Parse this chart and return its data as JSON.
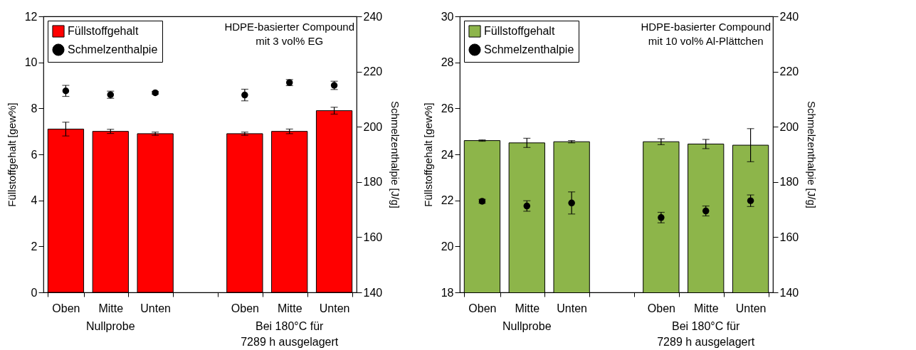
{
  "chart_data": [
    {
      "type": "bar",
      "categories": [
        "Oben",
        "Mitte",
        "Unten",
        null,
        "Oben",
        "Mitte",
        "Unten"
      ],
      "ylabel": "Füllstoffgehalt [gew%]",
      "y2label": "Schmelzenthalpie [J/g]",
      "ylim": [
        0,
        12
      ],
      "yticks": [
        0,
        2,
        4,
        6,
        8,
        10,
        12
      ],
      "y2lim": [
        140,
        240
      ],
      "y2ticks": [
        140,
        160,
        180,
        200,
        220,
        240
      ],
      "legend": "top left",
      "marker": "circle",
      "annotations": [
        "HDPE-basierter Compound\nmit 3 vol% EG",
        "Nullprobe",
        "Bei 180°C für\n7289 h ausgelagert"
      ],
      "series": [
        {
          "name": "Füllstoffgehalt",
          "color": "#ff0000",
          "values": [
            7.1,
            7.0,
            6.9,
            null,
            6.9,
            7.0,
            7.9
          ],
          "errors": [
            0.3,
            0.09,
            0.07,
            null,
            0.07,
            0.1,
            0.15
          ]
        },
        {
          "type": "scatter",
          "axis": "y2",
          "name": "Schmelzenthalpie",
          "color": "#000000",
          "values": [
            213,
            211.6,
            212.3,
            null,
            211.5,
            216,
            215
          ],
          "errors": [
            2,
            1.3,
            0.5,
            null,
            2.1,
            1.1,
            1.5
          ]
        }
      ]
    },
    {
      "type": "bar",
      "categories": [
        "Oben",
        "Mitte",
        "Unten",
        null,
        "Oben",
        "Mitte",
        "Unten"
      ],
      "ylabel": "Füllstoffgehalt [gew%]",
      "y2label": "Schmelzenthalpie [J/g]",
      "ylim": [
        18,
        30
      ],
      "yticks": [
        18,
        20,
        22,
        24,
        26,
        28,
        30
      ],
      "y2lim": [
        140,
        240
      ],
      "y2ticks": [
        140,
        160,
        180,
        200,
        220,
        240
      ],
      "legend": "top left",
      "marker": "circle",
      "annotations": [
        "HDPE-basierter Compound\nmit 10 vol% Al-Plättchen",
        "Nullprobe",
        "Bei 180°C für\n7289 h ausgelagert"
      ],
      "series": [
        {
          "name": "Füllstoffgehalt",
          "color": "#8db54a",
          "values": [
            24.6,
            24.5,
            24.55,
            null,
            24.55,
            24.45,
            24.4
          ],
          "errors": [
            0.03,
            0.2,
            0.05,
            null,
            0.13,
            0.2,
            0.72
          ]
        },
        {
          "type": "scatter",
          "axis": "y2",
          "name": "Schmelzenthalpie",
          "color": "#000000",
          "values": [
            173,
            171.3,
            172.4,
            null,
            167.1,
            169.5,
            173.2
          ],
          "errors": [
            0.7,
            1.9,
            4,
            null,
            1.9,
            1.8,
            2.1
          ]
        }
      ]
    }
  ]
}
